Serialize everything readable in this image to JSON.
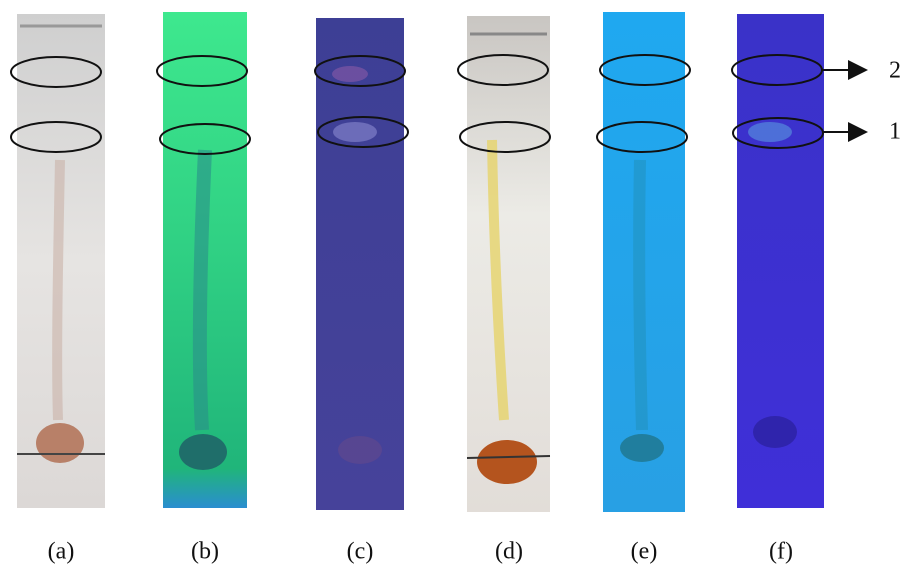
{
  "panels": [
    {
      "label": "(a)"
    },
    {
      "label": "(b)"
    },
    {
      "label": "(c)"
    },
    {
      "label": "(d)"
    },
    {
      "label": "(e)"
    },
    {
      "label": "(f)"
    }
  ],
  "bands": [
    {
      "label": "2"
    },
    {
      "label": "1"
    }
  ]
}
